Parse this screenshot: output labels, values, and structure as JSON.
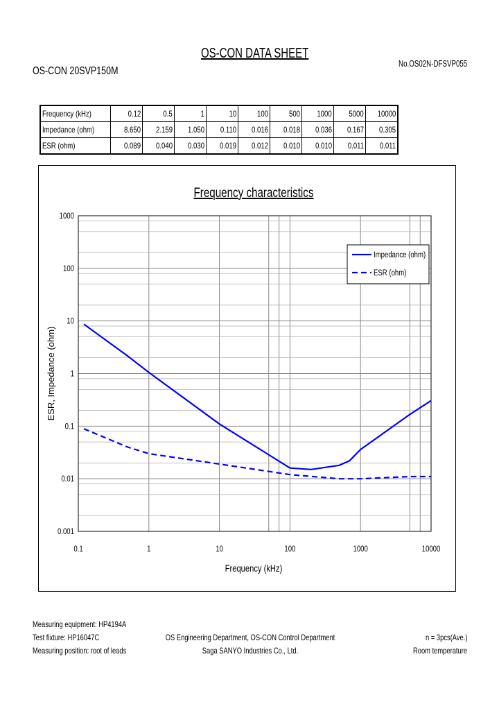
{
  "header": {
    "title": "OS-CON DATA SHEET",
    "model": "OS-CON 20SVP150M",
    "doc_number": "No.OS02N-DFSVP055"
  },
  "table": {
    "rows": [
      {
        "label": "Frequency (kHz)",
        "values": [
          "0.12",
          "0.5",
          "1",
          "10",
          "100",
          "500",
          "1000",
          "5000",
          "10000"
        ]
      },
      {
        "label": "Impedance (ohm)",
        "values": [
          "8.650",
          "2.159",
          "1.050",
          "0.110",
          "0.016",
          "0.018",
          "0.036",
          "0.167",
          "0.305"
        ]
      },
      {
        "label": "ESR (ohm)",
        "values": [
          "0.089",
          "0.040",
          "0.030",
          "0.019",
          "0.012",
          "0.010",
          "0.010",
          "0.011",
          "0.011"
        ]
      }
    ]
  },
  "chart_data": {
    "type": "line",
    "title": "Frequency characteristics",
    "xlabel": "Frequency (kHz)",
    "ylabel": "ESR, Impedance (ohm)",
    "xscale": "log",
    "yscale": "log",
    "xlim": [
      0.1,
      10000
    ],
    "ylim": [
      0.001,
      1000
    ],
    "xticks": [
      "0.1",
      "1",
      "10",
      "100",
      "1000",
      "10000"
    ],
    "yticks": [
      "0.001",
      "0.01",
      "0.1",
      "1",
      "10",
      "100",
      "1000"
    ],
    "grid": true,
    "legend": "top-right",
    "series": [
      {
        "name": "Impedance (ohm)",
        "style": "solid",
        "color": "#0000ff",
        "x": [
          0.12,
          0.5,
          1,
          10,
          100,
          200,
          500,
          700,
          1000,
          5000,
          10000
        ],
        "y": [
          8.65,
          2.159,
          1.05,
          0.11,
          0.016,
          0.015,
          0.018,
          0.022,
          0.036,
          0.167,
          0.305
        ]
      },
      {
        "name": "ESR (ohm)",
        "style": "dashed",
        "color": "#0000ff",
        "x": [
          0.12,
          0.5,
          1,
          10,
          100,
          500,
          1000,
          5000,
          10000
        ],
        "y": [
          0.089,
          0.04,
          0.03,
          0.019,
          0.012,
          0.01,
          0.01,
          0.011,
          0.011
        ]
      }
    ]
  },
  "footer": {
    "equipment": "Measuring equipment: HP4194A",
    "fixture": "Test fixture: HP16047C",
    "position": "Measuring position: root of leads",
    "department": "OS Engineering Department, OS-CON Control Department",
    "company": "Saga SANYO Industries Co., Ltd.",
    "sample": "n = 3pcs(Ave.)",
    "temperature": "Room temperature"
  }
}
